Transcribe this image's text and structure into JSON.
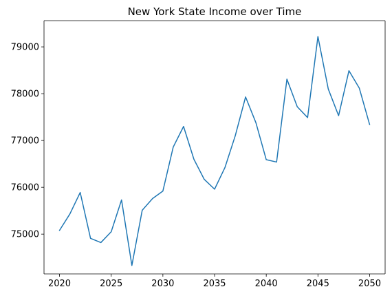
{
  "chart_data": {
    "type": "line",
    "title": "New York State Income over Time",
    "xlabel": "",
    "ylabel": "",
    "xlim": [
      2018.5,
      2051.5
    ],
    "ylim": [
      74150,
      79560
    ],
    "xticks": [
      2020,
      2025,
      2030,
      2035,
      2040,
      2045,
      2050
    ],
    "yticks": [
      75000,
      76000,
      77000,
      78000,
      79000
    ],
    "grid": false,
    "series": [
      {
        "color": "#1f77b4",
        "x": [
          2020,
          2021,
          2022,
          2023,
          2024,
          2025,
          2026,
          2027,
          2028,
          2029,
          2030,
          2031,
          2032,
          2033,
          2034,
          2035,
          2036,
          2037,
          2038,
          2039,
          2040,
          2041,
          2042,
          2043,
          2044,
          2045,
          2046,
          2047,
          2048,
          2049,
          2050
        ],
        "y": [
          75080,
          75430,
          75890,
          74910,
          74820,
          75050,
          75730,
          74330,
          75510,
          75760,
          75920,
          76860,
          77300,
          76600,
          76170,
          75960,
          76420,
          77100,
          77930,
          77380,
          76590,
          76540,
          78310,
          77720,
          77490,
          79220,
          78100,
          77530,
          78490,
          78120,
          77340
        ]
      }
    ]
  }
}
